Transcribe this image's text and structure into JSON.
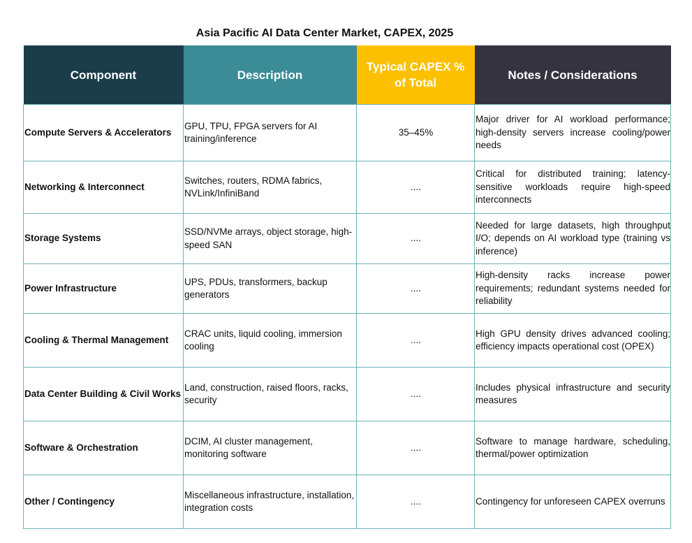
{
  "title": "Asia Pacific AI Data Center Market, CAPEX, 2025",
  "headers": [
    "Component",
    "Description",
    "Typical CAPEX % of Total",
    "Notes / Considerations"
  ],
  "header_colors": [
    "#1b3d4a",
    "#3b8c96",
    "#fcc000",
    "#34333f"
  ],
  "rows": [
    {
      "component": "Compute Servers & Accelerators",
      "description": "GPU, TPU, FPGA servers for AI training/inference",
      "capex": "35–45%",
      "notes": "Major driver for AI workload performance; high-density servers increase cooling/power needs"
    },
    {
      "component": "Networking & Interconnect",
      "description": "Switches, routers, RDMA fabrics, NVLink/InfiniBand",
      "capex": "....",
      "notes": "Critical for distributed training; latency-sensitive workloads require high-speed interconnects"
    },
    {
      "component": "Storage Systems",
      "description": "SSD/NVMe arrays, object storage, high-speed SAN",
      "capex": "....",
      "notes": "Needed for large datasets, high throughput I/O; depends on AI workload type (training vs inference)"
    },
    {
      "component": "Power Infrastructure",
      "description": "UPS, PDUs, transformers, backup generators",
      "capex": "....",
      "notes": "High-density racks increase power requirements; redundant systems needed for reliability"
    },
    {
      "component": "Cooling & Thermal Management",
      "description": "CRAC units, liquid cooling, immersion cooling",
      "capex": "....",
      "notes": "High GPU density drives advanced cooling; efficiency impacts operational cost (OPEX)"
    },
    {
      "component": "Data Center Building & Civil Works",
      "description": "Land, construction, raised floors, racks, security",
      "capex": "....",
      "notes": "Includes physical infrastructure and security measures"
    },
    {
      "component": "Software & Orchestration",
      "description": "DCIM, AI cluster management, monitoring software",
      "capex": "....",
      "notes": "Software to manage hardware, scheduling, thermal/power optimization"
    },
    {
      "component": "Other / Contingency",
      "description": "Miscellaneous infrastructure, installation, integration costs",
      "capex": "....",
      "notes": "Contingency for unforeseen CAPEX overruns"
    }
  ]
}
